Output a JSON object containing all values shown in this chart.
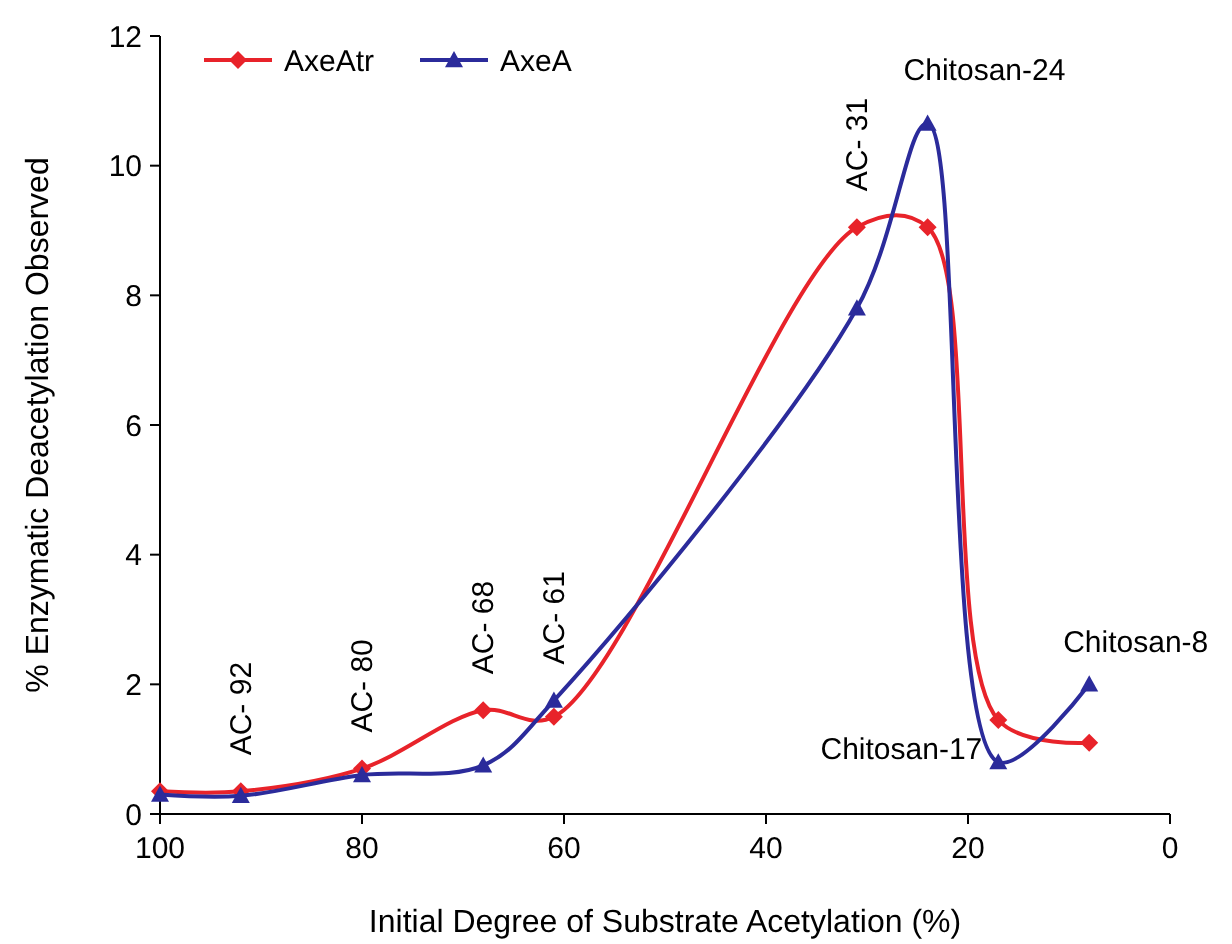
{
  "chart_data": {
    "type": "line",
    "xlabel": "Initial Degree of Substrate Acetylation (%)",
    "ylabel": "% Enzymatic Deacetylation Observed",
    "x": [
      100,
      92,
      80,
      68,
      61,
      31,
      24,
      17,
      8
    ],
    "series": [
      {
        "name": "AxeAtr",
        "color": "#e8232a",
        "marker": "diamond",
        "values": [
          0.35,
          0.35,
          0.7,
          1.6,
          1.5,
          9.05,
          9.05,
          1.45,
          1.1
        ]
      },
      {
        "name": "AxeA",
        "color": "#2b2b9b",
        "marker": "triangle",
        "values": [
          0.3,
          0.28,
          0.6,
          0.75,
          1.75,
          7.8,
          10.65,
          0.8,
          2.0
        ]
      }
    ],
    "xlim": [
      100,
      0
    ],
    "xticks": [
      100,
      80,
      60,
      40,
      20,
      0
    ],
    "ylim": [
      0,
      12
    ],
    "yticks": [
      0,
      2,
      4,
      6,
      8,
      10,
      12
    ],
    "grid": false,
    "legend": "top left",
    "line_style": "solid",
    "annotations": [
      {
        "text": "AC- 92",
        "x": 92,
        "y": 0.35
      },
      {
        "text": "AC- 80",
        "x": 80,
        "y": 0.7
      },
      {
        "text": "AC- 68",
        "x": 68,
        "y": 1.6
      },
      {
        "text": "AC- 61",
        "x": 61,
        "y": 1.75
      },
      {
        "text": "AC- 31",
        "x": 31,
        "y": 9.05
      },
      {
        "text": "Chitosan-24",
        "x": 24,
        "y": 10.65
      },
      {
        "text": "Chitosan-17",
        "x": 17,
        "y": 0.8
      },
      {
        "text": "Chitosan-8",
        "x": 8,
        "y": 2.0
      }
    ]
  }
}
